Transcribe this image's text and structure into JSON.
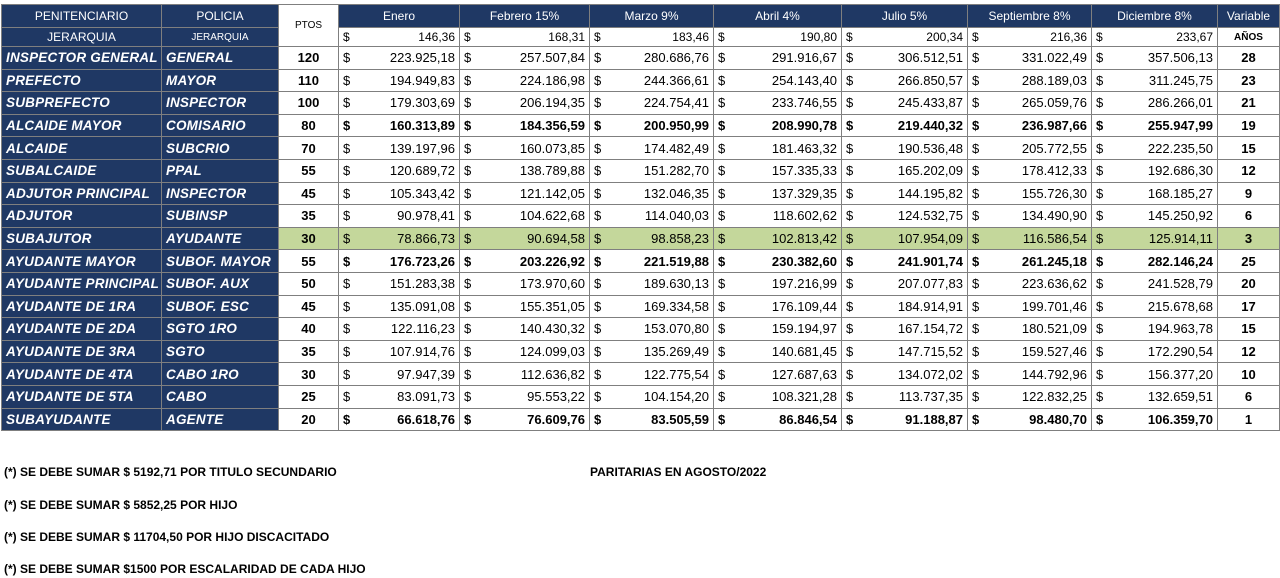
{
  "table": {
    "header": {
      "penitenciario": "PENITENCIARIO",
      "policia": "POLICIA",
      "ptos": "PTOS",
      "months": [
        "Enero",
        "Febrero 15%",
        "Marzo 9%",
        "Abril 4%",
        "Julio 5%",
        "Septiembre 8%",
        "Diciembre 8%"
      ],
      "variable": "Variable",
      "jerarquia_penitenciario": "JERARQUIA",
      "jerarquia_policia": "JERARQUIA",
      "month_values": [
        "146,36",
        "168,31",
        "183,46",
        "190,80",
        "200,34",
        "216,36",
        "233,67"
      ],
      "anos": "AÑOS"
    },
    "currency": "$",
    "rows": [
      {
        "penitenciario": "INSPECTOR GENERAL",
        "policia": "GENERAL",
        "ptos": 120,
        "amounts": [
          "223.925,18",
          "257.507,84",
          "280.686,76",
          "291.916,67",
          "306.512,51",
          "331.022,49",
          "357.506,13"
        ],
        "years": 28
      },
      {
        "penitenciario": "PREFECTO",
        "policia": "MAYOR",
        "ptos": 110,
        "amounts": [
          "194.949,83",
          "224.186,98",
          "244.366,61",
          "254.143,40",
          "266.850,57",
          "288.189,03",
          "311.245,75"
        ],
        "years": 23
      },
      {
        "penitenciario": "SUBPREFECTO",
        "policia": "INSPECTOR",
        "ptos": 100,
        "amounts": [
          "179.303,69",
          "206.194,35",
          "224.754,41",
          "233.746,55",
          "245.433,87",
          "265.059,76",
          "286.266,01"
        ],
        "years": 21
      },
      {
        "penitenciario": "ALCAIDE MAYOR",
        "policia": "COMISARIO",
        "ptos": 80,
        "amounts": [
          "160.313,89",
          "184.356,59",
          "200.950,99",
          "208.990,78",
          "219.440,32",
          "236.987,66",
          "255.947,99"
        ],
        "years": 19,
        "bold": true
      },
      {
        "penitenciario": "ALCAIDE",
        "policia": "SUBCRIO",
        "ptos": 70,
        "amounts": [
          "139.197,96",
          "160.073,85",
          "174.482,49",
          "181.463,32",
          "190.536,48",
          "205.772,55",
          "222.235,50"
        ],
        "years": 15
      },
      {
        "penitenciario": "SUBALCAIDE",
        "policia": "PPAL",
        "ptos": 55,
        "amounts": [
          "120.689,72",
          "138.789,88",
          "151.282,70",
          "157.335,33",
          "165.202,09",
          "178.412,33",
          "192.686,30"
        ],
        "years": 12
      },
      {
        "penitenciario": "ADJUTOR PRINCIPAL",
        "policia": "INSPECTOR",
        "ptos": 45,
        "amounts": [
          "105.343,42",
          "121.142,05",
          "132.046,35",
          "137.329,35",
          "144.195,82",
          "155.726,30",
          "168.185,27"
        ],
        "years": 9
      },
      {
        "penitenciario": "ADJUTOR",
        "policia": "SUBINSP",
        "ptos": 35,
        "amounts": [
          "90.978,41",
          "104.622,68",
          "114.040,03",
          "118.602,62",
          "124.532,75",
          "134.490,90",
          "145.250,92"
        ],
        "years": 6
      },
      {
        "penitenciario": "SUBAJUTOR",
        "policia": "AYUDANTE",
        "ptos": 30,
        "amounts": [
          "78.866,73",
          "90.694,58",
          "98.858,23",
          "102.813,42",
          "107.954,09",
          "116.586,54",
          "125.914,11"
        ],
        "years": 3,
        "highlight": true
      },
      {
        "penitenciario": "AYUDANTE MAYOR",
        "policia": "SUBOF. MAYOR",
        "ptos": 55,
        "amounts": [
          "176.723,26",
          "203.226,92",
          "221.519,88",
          "230.382,60",
          "241.901,74",
          "261.245,18",
          "282.146,24"
        ],
        "years": 25,
        "bold": true
      },
      {
        "penitenciario": "AYUDANTE PRINCIPAL",
        "policia": "SUBOF. AUX",
        "ptos": 50,
        "amounts": [
          "151.283,38",
          "173.970,60",
          "189.630,13",
          "197.216,99",
          "207.077,83",
          "223.636,62",
          "241.528,79"
        ],
        "years": 20
      },
      {
        "penitenciario": "AYUDANTE DE 1RA",
        "policia": "SUBOF. ESC",
        "ptos": 45,
        "amounts": [
          "135.091,08",
          "155.351,05",
          "169.334,58",
          "176.109,44",
          "184.914,91",
          "199.701,46",
          "215.678,68"
        ],
        "years": 17
      },
      {
        "penitenciario": "AYUDANTE DE 2DA",
        "policia": "SGTO 1RO",
        "ptos": 40,
        "amounts": [
          "122.116,23",
          "140.430,32",
          "153.070,80",
          "159.194,97",
          "167.154,72",
          "180.521,09",
          "194.963,78"
        ],
        "years": 15
      },
      {
        "penitenciario": "AYUDANTE DE 3RA",
        "policia": "SGTO",
        "ptos": 35,
        "amounts": [
          "107.914,76",
          "124.099,03",
          "135.269,49",
          "140.681,45",
          "147.715,52",
          "159.527,46",
          "172.290,54"
        ],
        "years": 12
      },
      {
        "penitenciario": "AYUDANTE DE 4TA",
        "policia": "CABO 1RO",
        "ptos": 30,
        "amounts": [
          "97.947,39",
          "112.636,82",
          "122.775,54",
          "127.687,63",
          "134.072,02",
          "144.792,96",
          "156.377,20"
        ],
        "years": 10
      },
      {
        "penitenciario": "AYUDANTE DE 5TA",
        "policia": "CABO",
        "ptos": 25,
        "amounts": [
          "83.091,73",
          "95.553,22",
          "104.154,20",
          "108.321,28",
          "113.737,35",
          "122.832,25",
          "132.659,51"
        ],
        "years": 6
      },
      {
        "penitenciario": "SUBAYUDANTE",
        "policia": "AGENTE",
        "ptos": 20,
        "amounts": [
          "66.618,76",
          "76.609,76",
          "83.505,59",
          "86.846,54",
          "91.188,87",
          "98.480,70",
          "106.359,70"
        ],
        "years": 1,
        "bold": true
      }
    ]
  },
  "notes": [
    "(*) SE DEBE SUMAR $ 5192,71 POR TITULO SECUNDARIO",
    "(*) SE DEBE SUMAR $ 5852,25 POR HIJO",
    "(*)  SE DEBE SUMAR $ 11704,50  POR HIJO DISCACITADO",
    "(*) SE DEBE SUMAR $1500 POR ESCALARIDAD DE CADA HIJO"
  ],
  "paritarias": "PARITARIAS EN AGOSTO/2022"
}
